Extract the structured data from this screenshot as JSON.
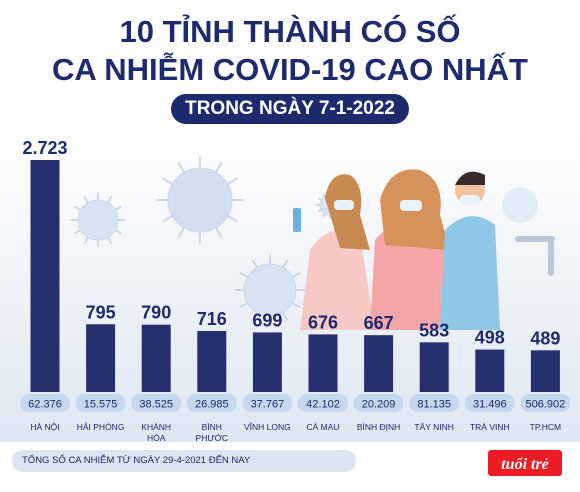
{
  "title_line1": "10 TỈNH THÀNH CÓ SỐ",
  "title_line2": "CA NHIỄM COVID-19 CAO NHẤT",
  "date_label": "TRONG NGÀY 7-1-2022",
  "footnote": "TỔNG SỐ CA NHIỄM TỪ NGÀY 29-4-2021 ĐẾN NAY",
  "logo": "tuổi trẻ",
  "colors": {
    "navy": "#1d2a6e",
    "bar": "#26306f",
    "pill": "#c5d8ef",
    "panel": "#e8eef6"
  },
  "chart_data": {
    "type": "bar",
    "categories": [
      [
        "HÀ NỘI"
      ],
      [
        "HẢI PHÒNG"
      ],
      [
        "KHÁNH",
        "HÒA"
      ],
      [
        "BÌNH",
        "PHƯỚC"
      ],
      [
        "VĨNH LONG"
      ],
      [
        "CÀ MAU"
      ],
      [
        "BÌNH ĐỊNH"
      ],
      [
        "TÂY NINH"
      ],
      [
        "TRÀ VINH"
      ],
      [
        "TP.HCM"
      ]
    ],
    "values": [
      2723,
      795,
      790,
      716,
      699,
      676,
      667,
      583,
      498,
      489
    ],
    "value_labels": [
      "2.723",
      "795",
      "790",
      "716",
      "699",
      "676",
      "667",
      "583",
      "498",
      "489"
    ],
    "totals": [
      "62.376",
      "15.575",
      "38.525",
      "26.985",
      "37.767",
      "42.102",
      "20.209",
      "81.135",
      "31.496",
      "506.902"
    ],
    "title": "",
    "xlabel": "",
    "ylabel": "",
    "legend": "none",
    "grid": false
  }
}
